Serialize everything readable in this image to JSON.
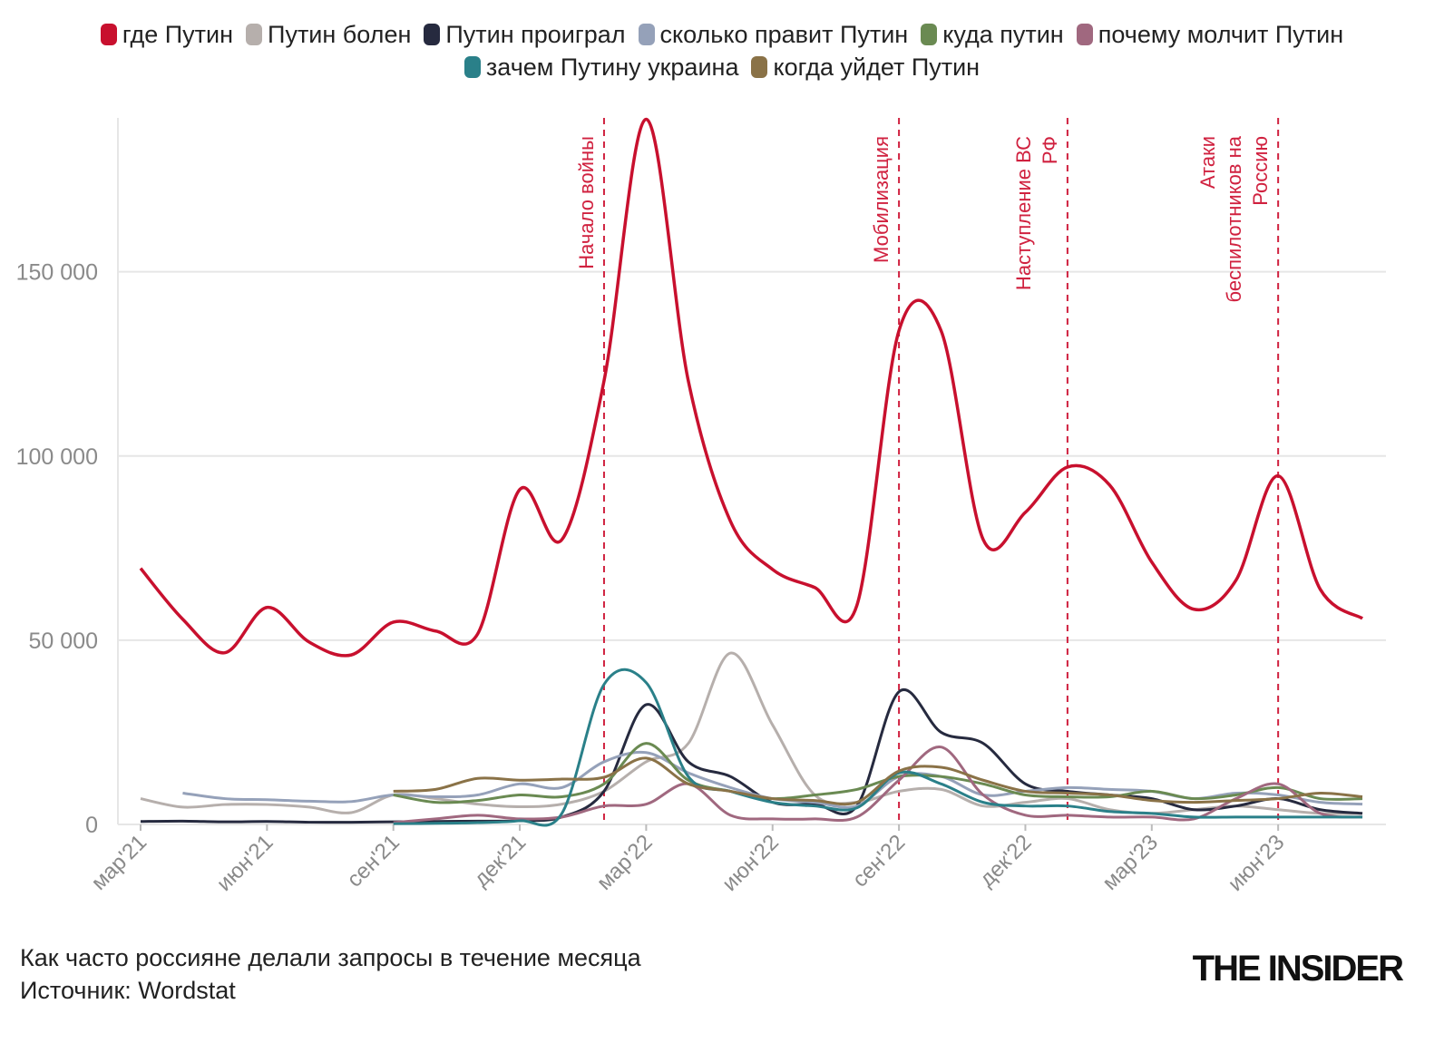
{
  "chart_data": {
    "type": "line",
    "x": [
      "2021-03",
      "2021-04",
      "2021-05",
      "2021-06",
      "2021-07",
      "2021-08",
      "2021-09",
      "2021-10",
      "2021-11",
      "2021-12",
      "2022-01",
      "2022-02",
      "2022-03",
      "2022-04",
      "2022-05",
      "2022-06",
      "2022-07",
      "2022-08",
      "2022-09",
      "2022-10",
      "2022-11",
      "2022-12",
      "2023-01",
      "2023-02",
      "2023-03",
      "2023-04",
      "2023-05",
      "2023-06",
      "2023-07",
      "2023-08"
    ],
    "x_tick_labels": [
      {
        "x": "2021-03",
        "label": "мар'21"
      },
      {
        "x": "2021-06",
        "label": "июн'21"
      },
      {
        "x": "2021-09",
        "label": "сен'21"
      },
      {
        "x": "2021-12",
        "label": "дек'21"
      },
      {
        "x": "2022-03",
        "label": "мар'22"
      },
      {
        "x": "2022-06",
        "label": "июн'22"
      },
      {
        "x": "2022-09",
        "label": "сен'22"
      },
      {
        "x": "2022-12",
        "label": "дек'22"
      },
      {
        "x": "2023-03",
        "label": "мар'23"
      },
      {
        "x": "2023-06",
        "label": "июн'23"
      }
    ],
    "y_ticks": [
      {
        "value": 0,
        "label": "0"
      },
      {
        "value": 50000,
        "label": "50 000"
      },
      {
        "value": 100000,
        "label": "100 000"
      },
      {
        "value": 150000,
        "label": "150 000"
      }
    ],
    "ylim": [
      0,
      192000
    ],
    "grid": "horizontal",
    "legend_position": "top",
    "series": [
      {
        "name": "где Путин",
        "color": "#c8102e",
        "values": [
          69500,
          55700,
          46600,
          58900,
          49500,
          46000,
          54900,
          52500,
          51700,
          90900,
          77300,
          120400,
          191400,
          120400,
          82300,
          69200,
          64300,
          59400,
          134000,
          134000,
          77300,
          84700,
          97000,
          92100,
          71200,
          58400,
          66300,
          94600,
          63800,
          55900
        ]
      },
      {
        "name": "Путин болен",
        "color": "#b6afac",
        "values": [
          7000,
          4700,
          5400,
          5400,
          4700,
          3200,
          8000,
          7000,
          5500,
          4800,
          5500,
          9000,
          17000,
          22000,
          46500,
          27000,
          8000,
          6000,
          9000,
          9500,
          5000,
          6000,
          7000,
          4000,
          3000,
          4000,
          5000,
          4000,
          3000,
          3000
        ]
      },
      {
        "name": "Путин проиграл",
        "color": "#262a3f",
        "values": [
          800,
          900,
          700,
          800,
          600,
          600,
          700,
          800,
          900,
          1000,
          2000,
          9000,
          32500,
          17000,
          13000,
          6000,
          5500,
          5000,
          36000,
          25000,
          22000,
          11000,
          9000,
          8000,
          7000,
          4000,
          5000,
          7000,
          4000,
          3000
        ]
      },
      {
        "name": "сколько правит Путин",
        "color": "#95a1b9",
        "values": [
          null,
          8500,
          7000,
          6700,
          6300,
          6200,
          8000,
          7500,
          8000,
          11000,
          10000,
          17000,
          19500,
          14000,
          10000,
          7000,
          6000,
          5000,
          13000,
          13000,
          8000,
          9000,
          10000,
          9500,
          9000,
          7000,
          8500,
          8000,
          6000,
          5500
        ]
      },
      {
        "name": "куда путин",
        "color": "#6a8a52",
        "values": [
          null,
          null,
          null,
          null,
          null,
          null,
          8000,
          6000,
          6500,
          8000,
          7500,
          11000,
          22000,
          12000,
          9000,
          7000,
          8000,
          9500,
          13000,
          13000,
          11000,
          8000,
          7500,
          7500,
          9000,
          7000,
          8000,
          10000,
          7000,
          7000
        ]
      },
      {
        "name": "почему молчит Путин",
        "color": "#a0687f",
        "values": [
          null,
          null,
          null,
          null,
          null,
          null,
          500,
          1500,
          2500,
          1500,
          2000,
          5000,
          5500,
          11000,
          2500,
          1500,
          1500,
          2000,
          12000,
          21000,
          8000,
          2500,
          2500,
          2000,
          2000,
          1500,
          7000,
          11000,
          3000,
          2000
        ]
      },
      {
        "name": "зачем Путину украина",
        "color": "#2a8089",
        "values": [
          null,
          null,
          null,
          null,
          null,
          null,
          200,
          300,
          500,
          1000,
          3000,
          38000,
          38500,
          13000,
          9000,
          6000,
          5000,
          4500,
          14000,
          11000,
          6000,
          5000,
          5000,
          3500,
          3000,
          2000,
          2000,
          2000,
          2000,
          2000
        ]
      },
      {
        "name": "когда уйдет Путин",
        "color": "#8a7247",
        "values": [
          null,
          null,
          null,
          null,
          null,
          null,
          9000,
          9500,
          12500,
          12000,
          12300,
          12800,
          18000,
          11000,
          9000,
          7000,
          6500,
          6000,
          14500,
          15500,
          12000,
          9000,
          8500,
          8000,
          6500,
          6000,
          6500,
          7000,
          8500,
          7500
        ]
      }
    ],
    "annotations": [
      {
        "x": "2022-02",
        "lines": [
          "Начало войны"
        ]
      },
      {
        "x": "2022-09",
        "lines": [
          "Мобилизация"
        ]
      },
      {
        "x": "2023-01",
        "lines": [
          "Наступление ВС",
          "РФ"
        ]
      },
      {
        "x": "2023-06",
        "lines": [
          "Атаки",
          "беспилотников на",
          "Россию"
        ]
      }
    ],
    "annotation_color": "#d0213f",
    "caption": "Как часто россияне делали запросы в течение месяца",
    "source": "Источник: Wordstat"
  },
  "logo": "THE INSIDER"
}
